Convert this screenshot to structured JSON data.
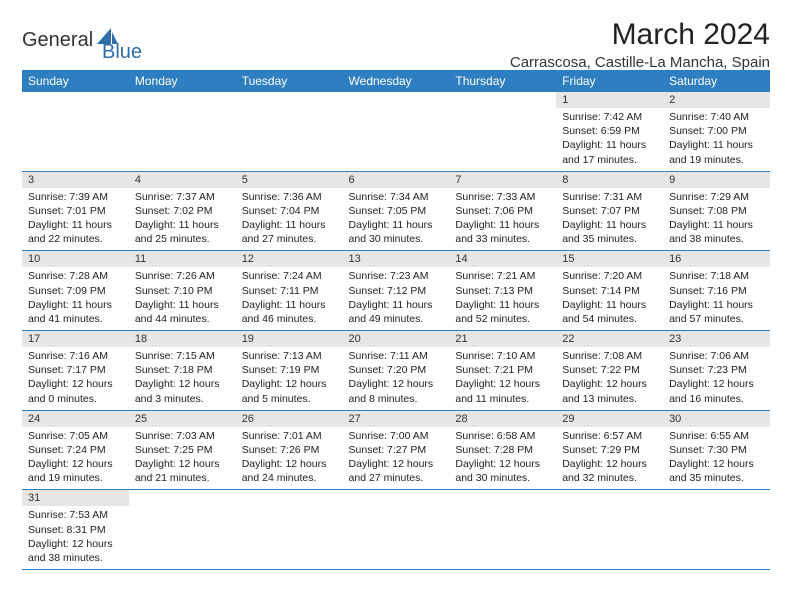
{
  "logo": {
    "text1": "General",
    "text2": "Blue"
  },
  "title": "March 2024",
  "location": "Carrascosa, Castille-La Mancha, Spain",
  "colors": {
    "header_bg": "#2d7fc1",
    "header_text": "#ffffff",
    "daynum_bg": "#e6e6e6",
    "border": "#2d7fc1",
    "logo_accent": "#2d6ea8"
  },
  "weekdays": [
    "Sunday",
    "Monday",
    "Tuesday",
    "Wednesday",
    "Thursday",
    "Friday",
    "Saturday"
  ],
  "first_day_index": 5,
  "days": [
    {
      "n": 1,
      "sr": "7:42 AM",
      "ss": "6:59 PM",
      "dl": "11 hours and 17 minutes."
    },
    {
      "n": 2,
      "sr": "7:40 AM",
      "ss": "7:00 PM",
      "dl": "11 hours and 19 minutes."
    },
    {
      "n": 3,
      "sr": "7:39 AM",
      "ss": "7:01 PM",
      "dl": "11 hours and 22 minutes."
    },
    {
      "n": 4,
      "sr": "7:37 AM",
      "ss": "7:02 PM",
      "dl": "11 hours and 25 minutes."
    },
    {
      "n": 5,
      "sr": "7:36 AM",
      "ss": "7:04 PM",
      "dl": "11 hours and 27 minutes."
    },
    {
      "n": 6,
      "sr": "7:34 AM",
      "ss": "7:05 PM",
      "dl": "11 hours and 30 minutes."
    },
    {
      "n": 7,
      "sr": "7:33 AM",
      "ss": "7:06 PM",
      "dl": "11 hours and 33 minutes."
    },
    {
      "n": 8,
      "sr": "7:31 AM",
      "ss": "7:07 PM",
      "dl": "11 hours and 35 minutes."
    },
    {
      "n": 9,
      "sr": "7:29 AM",
      "ss": "7:08 PM",
      "dl": "11 hours and 38 minutes."
    },
    {
      "n": 10,
      "sr": "7:28 AM",
      "ss": "7:09 PM",
      "dl": "11 hours and 41 minutes."
    },
    {
      "n": 11,
      "sr": "7:26 AM",
      "ss": "7:10 PM",
      "dl": "11 hours and 44 minutes."
    },
    {
      "n": 12,
      "sr": "7:24 AM",
      "ss": "7:11 PM",
      "dl": "11 hours and 46 minutes."
    },
    {
      "n": 13,
      "sr": "7:23 AM",
      "ss": "7:12 PM",
      "dl": "11 hours and 49 minutes."
    },
    {
      "n": 14,
      "sr": "7:21 AM",
      "ss": "7:13 PM",
      "dl": "11 hours and 52 minutes."
    },
    {
      "n": 15,
      "sr": "7:20 AM",
      "ss": "7:14 PM",
      "dl": "11 hours and 54 minutes."
    },
    {
      "n": 16,
      "sr": "7:18 AM",
      "ss": "7:16 PM",
      "dl": "11 hours and 57 minutes."
    },
    {
      "n": 17,
      "sr": "7:16 AM",
      "ss": "7:17 PM",
      "dl": "12 hours and 0 minutes."
    },
    {
      "n": 18,
      "sr": "7:15 AM",
      "ss": "7:18 PM",
      "dl": "12 hours and 3 minutes."
    },
    {
      "n": 19,
      "sr": "7:13 AM",
      "ss": "7:19 PM",
      "dl": "12 hours and 5 minutes."
    },
    {
      "n": 20,
      "sr": "7:11 AM",
      "ss": "7:20 PM",
      "dl": "12 hours and 8 minutes."
    },
    {
      "n": 21,
      "sr": "7:10 AM",
      "ss": "7:21 PM",
      "dl": "12 hours and 11 minutes."
    },
    {
      "n": 22,
      "sr": "7:08 AM",
      "ss": "7:22 PM",
      "dl": "12 hours and 13 minutes."
    },
    {
      "n": 23,
      "sr": "7:06 AM",
      "ss": "7:23 PM",
      "dl": "12 hours and 16 minutes."
    },
    {
      "n": 24,
      "sr": "7:05 AM",
      "ss": "7:24 PM",
      "dl": "12 hours and 19 minutes."
    },
    {
      "n": 25,
      "sr": "7:03 AM",
      "ss": "7:25 PM",
      "dl": "12 hours and 21 minutes."
    },
    {
      "n": 26,
      "sr": "7:01 AM",
      "ss": "7:26 PM",
      "dl": "12 hours and 24 minutes."
    },
    {
      "n": 27,
      "sr": "7:00 AM",
      "ss": "7:27 PM",
      "dl": "12 hours and 27 minutes."
    },
    {
      "n": 28,
      "sr": "6:58 AM",
      "ss": "7:28 PM",
      "dl": "12 hours and 30 minutes."
    },
    {
      "n": 29,
      "sr": "6:57 AM",
      "ss": "7:29 PM",
      "dl": "12 hours and 32 minutes."
    },
    {
      "n": 30,
      "sr": "6:55 AM",
      "ss": "7:30 PM",
      "dl": "12 hours and 35 minutes."
    },
    {
      "n": 31,
      "sr": "7:53 AM",
      "ss": "8:31 PM",
      "dl": "12 hours and 38 minutes."
    }
  ],
  "labels": {
    "sunrise": "Sunrise:",
    "sunset": "Sunset:",
    "daylight": "Daylight:"
  }
}
